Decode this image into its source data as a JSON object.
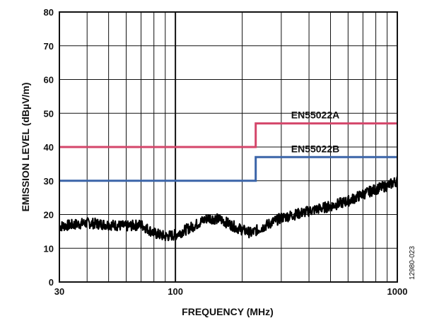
{
  "chart_data": {
    "type": "line",
    "xlabel": "FREQUENCY (MHz)",
    "ylabel": "EMISSION LEVEL (dBµV/m)",
    "x_scale": "log",
    "xlim": [
      30,
      1000
    ],
    "ylim": [
      0,
      80
    ],
    "x_ticks": [
      30,
      100,
      1000
    ],
    "x_tick_labels": [
      "30",
      "100",
      "1000"
    ],
    "y_ticks": [
      0,
      10,
      20,
      30,
      40,
      50,
      60,
      70,
      80
    ],
    "y_tick_labels": [
      "0",
      "10",
      "20",
      "30",
      "40",
      "50",
      "60",
      "70",
      "80"
    ],
    "grid": true,
    "figure_id": "12980-023",
    "series": [
      {
        "name": "EN55022A",
        "color": "#d4466a",
        "x": [
          30,
          230,
          230,
          1000
        ],
        "y": [
          40,
          40,
          47,
          47
        ]
      },
      {
        "name": "EN55022B",
        "color": "#3a64a8",
        "x": [
          30,
          230,
          230,
          1000
        ],
        "y": [
          30,
          30,
          37,
          37
        ]
      },
      {
        "name": "",
        "color": "#000000",
        "x": [
          30,
          40,
          50,
          60,
          70,
          80,
          90,
          100,
          120,
          140,
          160,
          190,
          220,
          260,
          300,
          400,
          500,
          600,
          700,
          800,
          900,
          1000
        ],
        "y": [
          16.5,
          17.5,
          17,
          16.5,
          17,
          14.5,
          13.5,
          14,
          16.5,
          19,
          18.5,
          16,
          14.5,
          17,
          19,
          21,
          22.5,
          24,
          26,
          27.5,
          28.5,
          30
        ]
      }
    ]
  }
}
